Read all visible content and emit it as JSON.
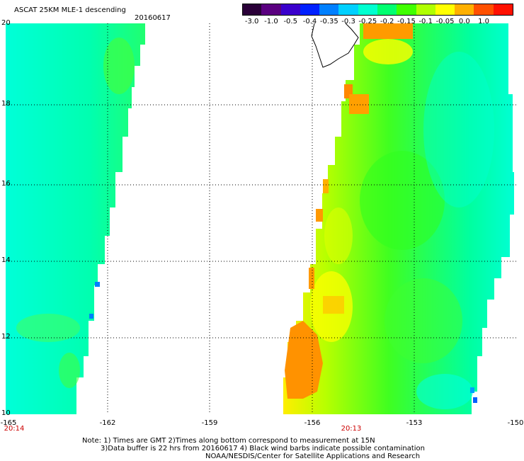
{
  "header": {
    "title": "ASCAT 25KM MLE-1 descending",
    "date": "20160617"
  },
  "colorbar": {
    "labels": [
      "-3.0",
      "-1.0",
      "-0.5",
      "-0.4",
      "-0.35",
      "-0.3",
      "-0.25",
      "-0.2",
      "-0.15",
      "-0.1",
      "-0.05",
      "0.0",
      "1.0"
    ],
    "colors": [
      "#2a0038",
      "#5a0080",
      "#3a00cc",
      "#0020ff",
      "#0080ff",
      "#00d0ff",
      "#00ffd0",
      "#00ff70",
      "#40ff00",
      "#b0ff00",
      "#ffff00",
      "#ffb000",
      "#ff5000",
      "#ff1000"
    ]
  },
  "map": {
    "lat_labels": [
      "20",
      "18",
      "16",
      "14",
      "12",
      "10"
    ],
    "lon_labels": [
      "-165",
      "-162",
      "-159",
      "-156",
      "-153",
      "-150"
    ],
    "time_labels": [
      "20:14",
      "20:13"
    ],
    "island_outline": "Hawaii Island coastline"
  },
  "notes": {
    "line1": "Note: 1) Times are GMT 2)Times along bottom correspond to measurement at 15N",
    "line2": "3)Data buffer is 22 hrs from 20160617 4) Black wind barbs indicate possible contamination",
    "line3": "NOAA/NESDIS/Center for Satellite Applications and Research"
  },
  "colors": {
    "swath_base": "#00ff80",
    "swath_cyan": "#00ffd8",
    "swath_yellow": "#ffff00",
    "swath_orange": "#ff9900",
    "grid": "#000000",
    "time_label": "#cc0000"
  }
}
